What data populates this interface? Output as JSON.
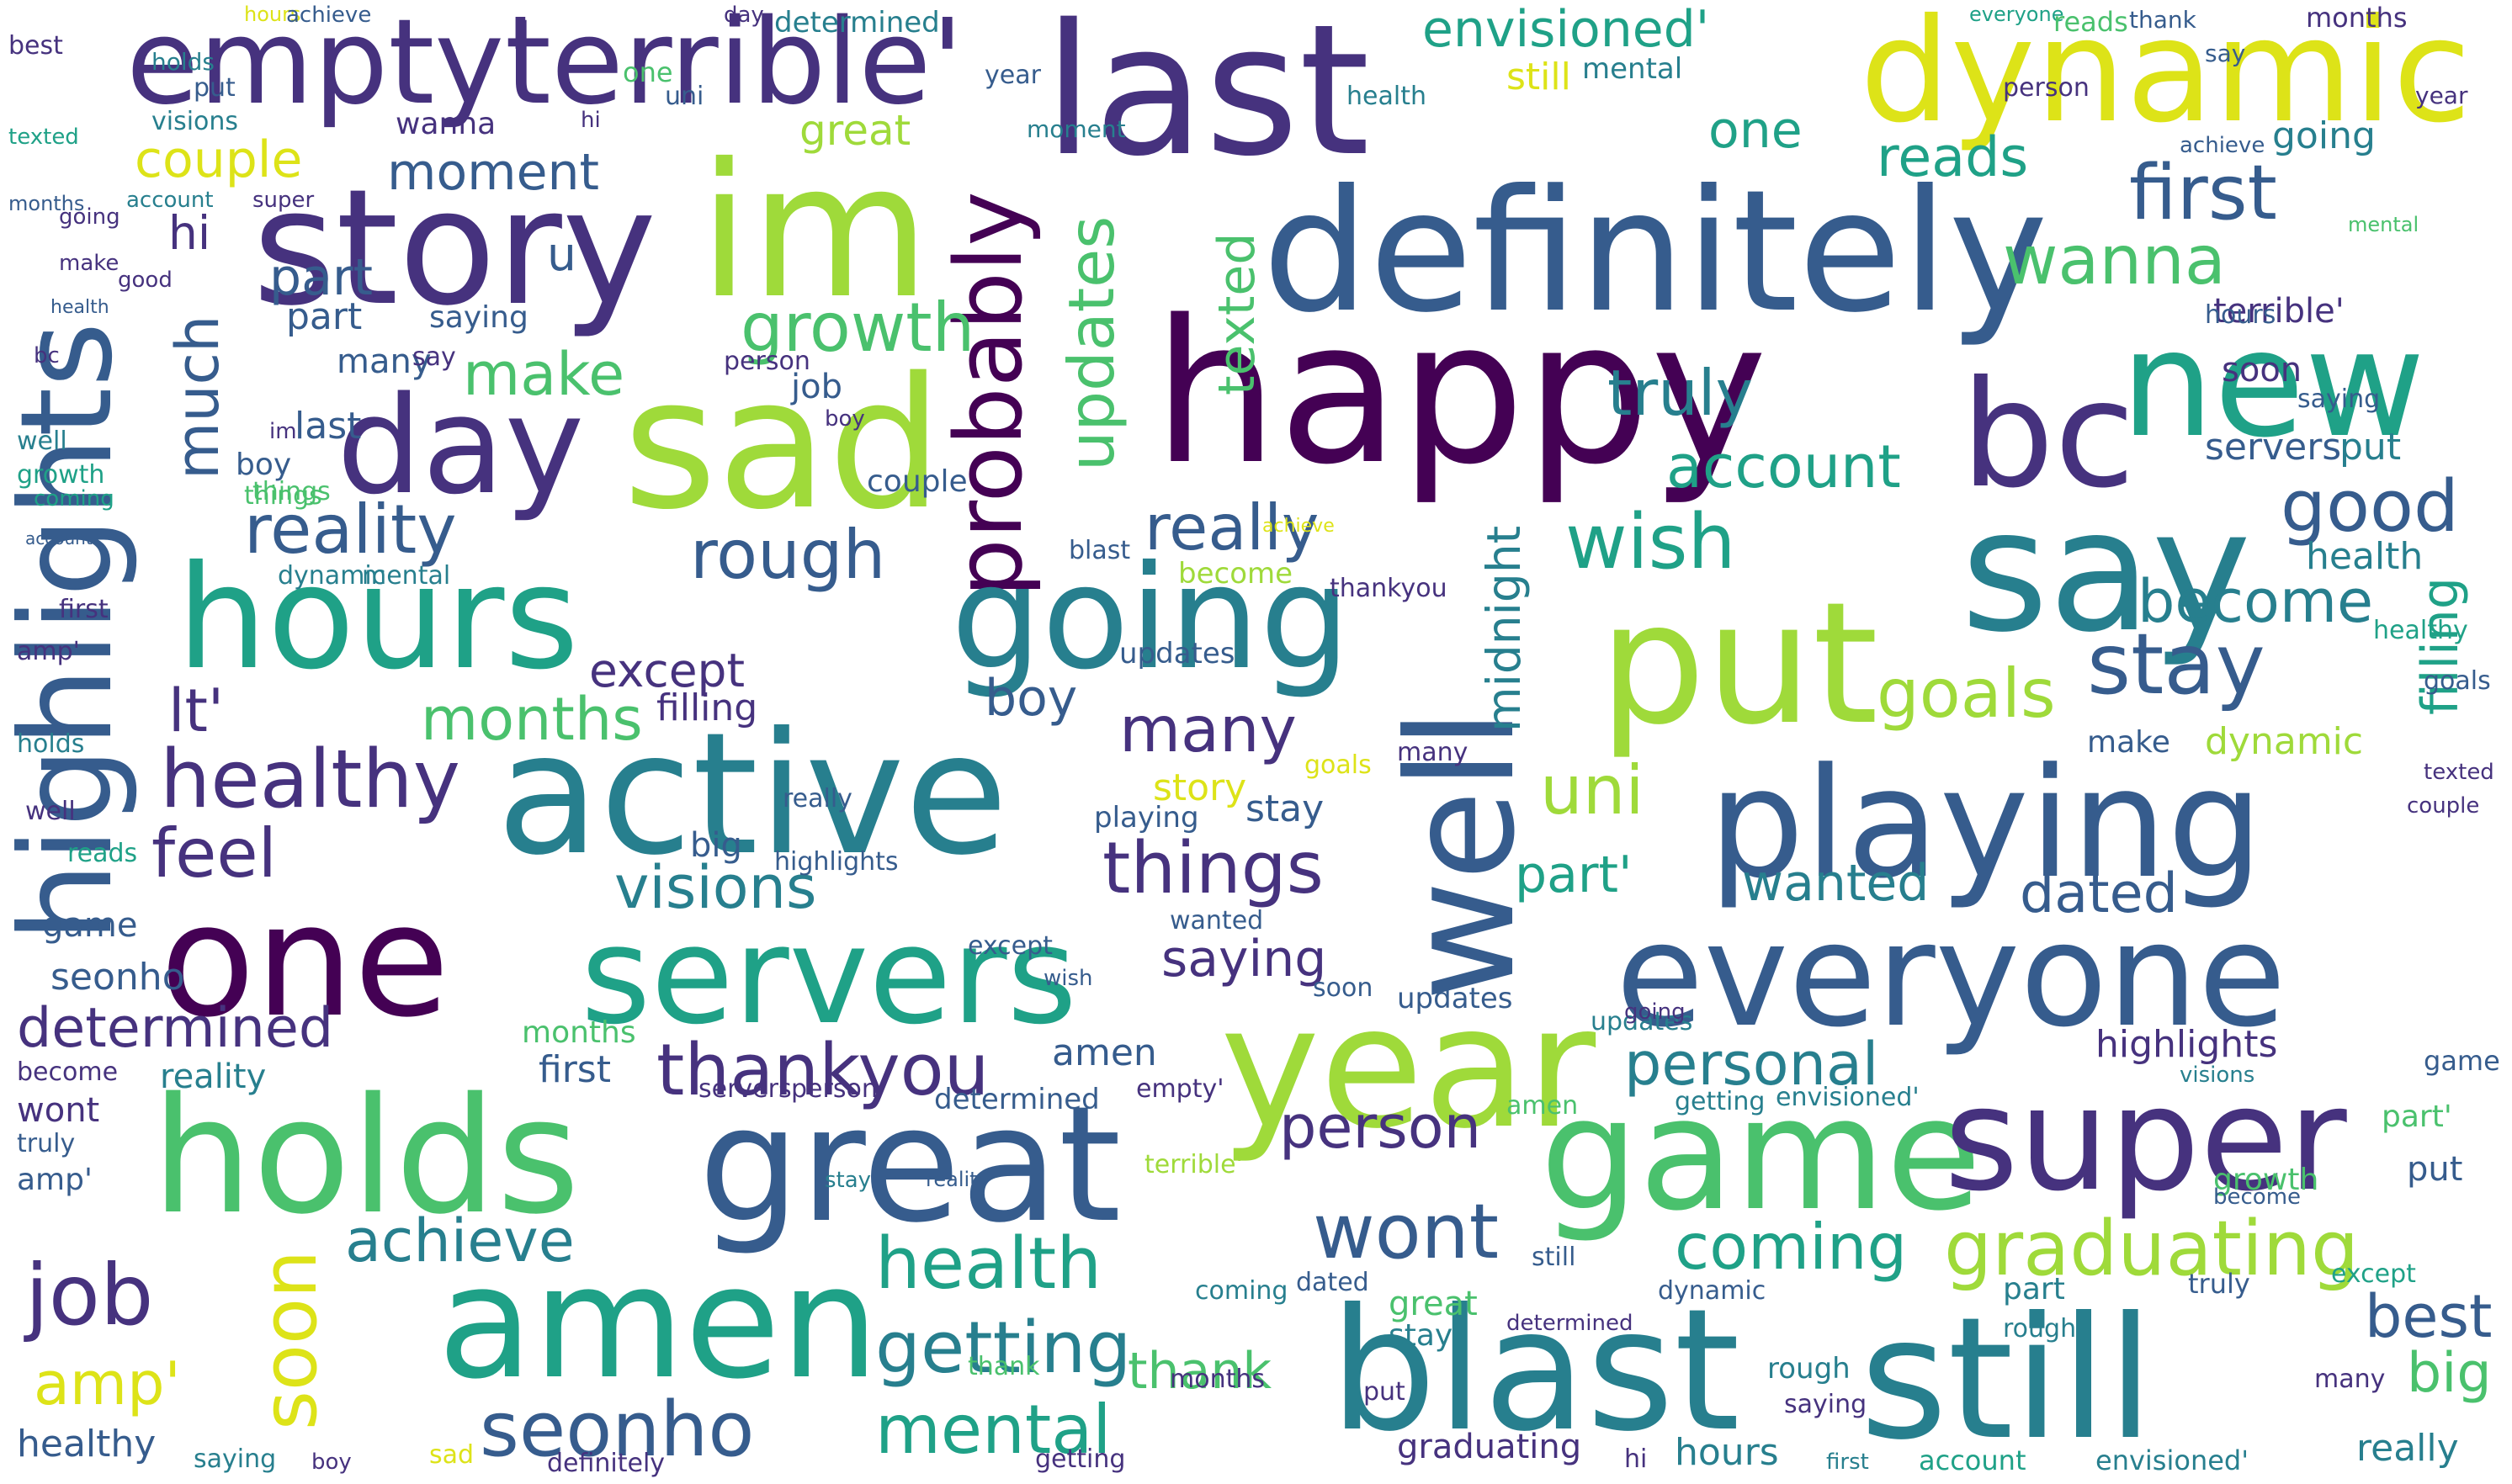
{
  "colors": {
    "background": "#ffffff",
    "palette": [
      "#440154",
      "#46327e",
      "#365c8d",
      "#277f8e",
      "#1fa187",
      "#4ac16d",
      "#9fda3a",
      "#dde318"
    ]
  },
  "words": [
    {
      "text": "empty'"
    },
    {
      "text": "terrible'"
    },
    {
      "text": "last"
    },
    {
      "text": "dynamic"
    },
    {
      "text": "highlights"
    },
    {
      "text": "story"
    },
    {
      "text": "im"
    },
    {
      "text": "definitely"
    },
    {
      "text": "happy"
    },
    {
      "text": "new"
    },
    {
      "text": "day"
    },
    {
      "text": "sad"
    },
    {
      "text": "probably"
    },
    {
      "text": "bc"
    },
    {
      "text": "say"
    },
    {
      "text": "hours"
    },
    {
      "text": "going"
    },
    {
      "text": "put"
    },
    {
      "text": "active"
    },
    {
      "text": "well"
    },
    {
      "text": "playing"
    },
    {
      "text": "one"
    },
    {
      "text": "servers"
    },
    {
      "text": "everyone"
    },
    {
      "text": "year"
    },
    {
      "text": "holds"
    },
    {
      "text": "great"
    },
    {
      "text": "game"
    },
    {
      "text": "super"
    },
    {
      "text": "amen"
    },
    {
      "text": "blast"
    },
    {
      "text": "still"
    },
    {
      "text": "graduating"
    },
    {
      "text": "getting"
    },
    {
      "text": "seonho"
    },
    {
      "text": "mental"
    },
    {
      "text": "health"
    },
    {
      "text": "job"
    },
    {
      "text": "amp'"
    },
    {
      "text": "soon"
    },
    {
      "text": "thankyou"
    },
    {
      "text": "personal"
    },
    {
      "text": "determined"
    },
    {
      "text": "visions"
    },
    {
      "text": "things"
    },
    {
      "text": "stay"
    },
    {
      "text": "goals"
    },
    {
      "text": "uni"
    },
    {
      "text": "filling"
    },
    {
      "text": "wish"
    },
    {
      "text": "really"
    },
    {
      "text": "rough"
    },
    {
      "text": "many"
    },
    {
      "text": "months"
    },
    {
      "text": "feel"
    },
    {
      "text": "healthy"
    },
    {
      "text": "reality"
    },
    {
      "text": "much"
    },
    {
      "text": "growth"
    },
    {
      "text": "updates"
    },
    {
      "text": "couple"
    },
    {
      "text": "envisioned'"
    },
    {
      "text": "reads"
    },
    {
      "text": "first"
    },
    {
      "text": "wanna"
    },
    {
      "text": "good"
    },
    {
      "text": "become"
    },
    {
      "text": "account"
    },
    {
      "text": "truly"
    },
    {
      "text": "make"
    },
    {
      "text": "part"
    },
    {
      "text": "wont"
    },
    {
      "text": "best"
    },
    {
      "text": "coming"
    },
    {
      "text": "achieve"
    },
    {
      "text": "moment"
    },
    {
      "text": "person"
    },
    {
      "text": "texted"
    },
    {
      "text": "midnight"
    },
    {
      "text": "boy"
    },
    {
      "text": "except"
    },
    {
      "text": "saying"
    },
    {
      "text": "thank"
    },
    {
      "text": "wanted"
    },
    {
      "text": "dated"
    },
    {
      "text": "lt'"
    },
    {
      "text": "big"
    },
    {
      "text": "hi"
    },
    {
      "text": "u"
    },
    {
      "text": "part'"
    }
  ]
}
